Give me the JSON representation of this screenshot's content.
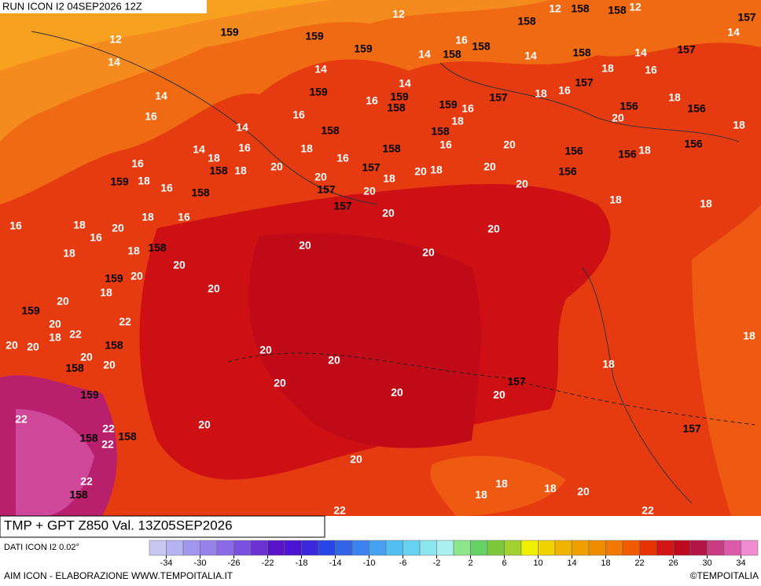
{
  "header": {
    "run": "RUN ICON I2 04SEP2026 12Z"
  },
  "map": {
    "field_title": "TMP + GPT Z850 Val. 13Z05SEP2026",
    "temperature_labels": [
      "12",
      "12",
      "12",
      "12",
      "14",
      "14",
      "14",
      "14",
      "14",
      "14",
      "14",
      "14",
      "14",
      "14",
      "16",
      "16",
      "16",
      "16",
      "16",
      "16",
      "16",
      "16",
      "16",
      "16",
      "16",
      "16",
      "16",
      "16",
      "16",
      "18",
      "18",
      "18",
      "18",
      "18",
      "18",
      "18",
      "18",
      "18",
      "18",
      "18",
      "18",
      "18",
      "18",
      "18",
      "18",
      "18",
      "18",
      "18",
      "18",
      "18",
      "18",
      "18",
      "18",
      "18",
      "20",
      "20",
      "20",
      "20",
      "20",
      "20",
      "20",
      "20",
      "20",
      "20",
      "20",
      "20",
      "20",
      "20",
      "20",
      "20",
      "20",
      "20",
      "20",
      "20",
      "20",
      "20",
      "20",
      "20",
      "20",
      "20",
      "20",
      "20",
      "20",
      "20",
      "20",
      "20",
      "22",
      "22",
      "22",
      "22",
      "22",
      "22"
    ],
    "geopotential_labels": [
      "159",
      "159",
      "159",
      "159",
      "159",
      "159",
      "159",
      "159",
      "159",
      "159",
      "158",
      "158",
      "158",
      "158",
      "158",
      "158",
      "158",
      "158",
      "158",
      "158",
      "158",
      "158",
      "158",
      "158",
      "158",
      "158",
      "158",
      "158",
      "157",
      "157",
      "157",
      "157",
      "157",
      "157",
      "157",
      "157",
      "157",
      "156",
      "156",
      "156",
      "156",
      "156",
      "156"
    ]
  },
  "legend": {
    "source": "DATI ICON I2 0.02°",
    "colors": [
      "#c8c8f5",
      "#b4b4f0",
      "#a096f0",
      "#9682ea",
      "#8a6ae6",
      "#7a50de",
      "#6a32d2",
      "#5a14c8",
      "#4b14d2",
      "#3c28dc",
      "#2846e6",
      "#3264e6",
      "#3c82f0",
      "#46a0f0",
      "#50bef0",
      "#64d2f0",
      "#8ce6f0",
      "#aaf0f0",
      "#8ce68c",
      "#64d264",
      "#7cc83c",
      "#a0d232",
      "#f0f000",
      "#f0d200",
      "#f0b400",
      "#f0a000",
      "#f08c00",
      "#f07800",
      "#f05a00",
      "#e63200",
      "#d21414",
      "#be0a1e",
      "#b41446",
      "#c83c82",
      "#dc5aaa",
      "#f08cd2"
    ],
    "ticks": [
      -34,
      -30,
      -26,
      -22,
      -18,
      -14,
      -10,
      -6,
      -2,
      2,
      6,
      10,
      14,
      18,
      22,
      26,
      30,
      34
    ]
  },
  "footer": {
    "credit": "AIM ICON - ELABORAZIONE WWW.TEMPOITALIA.IT",
    "copyright": "©TEMPOITALIA"
  }
}
